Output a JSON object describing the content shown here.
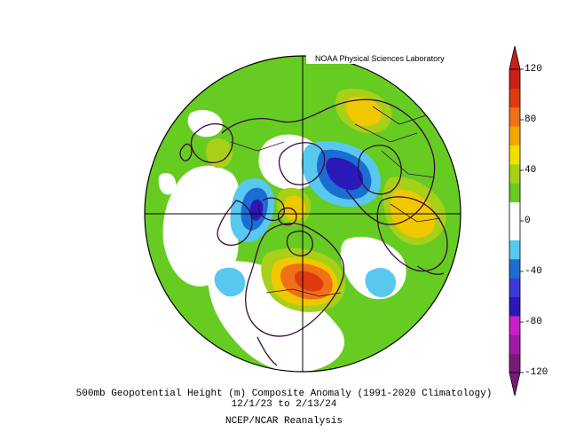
{
  "credit": "NOAA Physical Sciences Laboratory",
  "caption": {
    "title": "500mb Geopotential Height (m) Composite Anomaly (1991-2020 Climatology)",
    "dates": "12/1/23  to 2/13/24",
    "source": "NCEP/NCAR Reanalysis"
  },
  "colorbar": {
    "ticks": [
      "120",
      "80",
      "40",
      "0",
      "-40",
      "-80",
      "-120"
    ],
    "colors": [
      "#7a1a78",
      "#a01aa8",
      "#c81ec8",
      "#2a18b8",
      "#3a3ad8",
      "#1a6ed2",
      "#58c8ee",
      "#ffffff",
      "#ffffff",
      "#66cc22",
      "#a8d018",
      "#f0e000",
      "#f0a800",
      "#f07018",
      "#e03a10",
      "#c8201a"
    ]
  },
  "map": {
    "projection": "north-polar-stereographic",
    "field": "500mb geopotential height anomaly",
    "colors": {
      "background_anomaly": "#66cc22",
      "near_zero": "#ffffff",
      "weak_positive": "#a8d018",
      "moderate_positive": "#f0c800",
      "strong_positive": "#f07018",
      "peak_positive": "#e03a10",
      "weak_negative": "#58c8ee",
      "moderate_negative": "#1a6ed2",
      "strong_negative": "#2a18b8"
    }
  }
}
